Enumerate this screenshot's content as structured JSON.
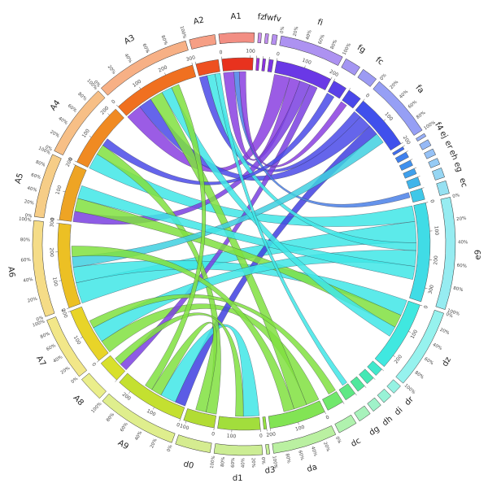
{
  "chart_data": {
    "type": "chord",
    "segments": [
      {
        "name": "A1",
        "size": 110,
        "color": "#e8321e"
      },
      {
        "name": "fz",
        "size": 10,
        "color": "#9b30d8"
      },
      {
        "name": "fw",
        "size": 10,
        "color": "#8a30e0"
      },
      {
        "name": "fv",
        "size": 15,
        "color": "#7a34e4"
      },
      {
        "name": "fi",
        "size": 200,
        "color": "#6a38e6"
      },
      {
        "name": "fg",
        "size": 50,
        "color": "#5a40e8"
      },
      {
        "name": "fc",
        "size": 50,
        "color": "#4a48ea"
      },
      {
        "name": "fa",
        "size": 200,
        "color": "#4050ec"
      },
      {
        "name": "f4",
        "size": 10,
        "color": "#3f6cee"
      },
      {
        "name": "ej",
        "size": 20,
        "color": "#3f80ee"
      },
      {
        "name": "er",
        "size": 20,
        "color": "#3f90ee"
      },
      {
        "name": "eh",
        "size": 20,
        "color": "#3fa0ec"
      },
      {
        "name": "eg",
        "size": 30,
        "color": "#3fb4ea"
      },
      {
        "name": "ec",
        "size": 40,
        "color": "#3fc8e8"
      },
      {
        "name": "e9",
        "size": 350,
        "color": "#40dce6"
      },
      {
        "name": "dz",
        "size": 250,
        "color": "#40e8e0"
      },
      {
        "name": "dr",
        "size": 30,
        "color": "#40e8cc"
      },
      {
        "name": "di",
        "size": 30,
        "color": "#44e8b4"
      },
      {
        "name": "dh",
        "size": 30,
        "color": "#50e89c"
      },
      {
        "name": "dg",
        "size": 40,
        "color": "#5ee884"
      },
      {
        "name": "dc",
        "size": 60,
        "color": "#70e86c"
      },
      {
        "name": "da",
        "size": 200,
        "color": "#82e454"
      },
      {
        "name": "d3",
        "size": 10,
        "color": "#94e040"
      },
      {
        "name": "d1",
        "size": 150,
        "color": "#a2de3c"
      },
      {
        "name": "d0",
        "size": 110,
        "color": "#b2dc34"
      },
      {
        "name": "A9",
        "size": 250,
        "color": "#c4e030"
      },
      {
        "name": "A8",
        "size": 80,
        "color": "#d8e02c"
      },
      {
        "name": "A7",
        "size": 200,
        "color": "#e8d428"
      },
      {
        "name": "A6",
        "size": 300,
        "color": "#ecc024"
      },
      {
        "name": "A5",
        "size": 200,
        "color": "#eea424"
      },
      {
        "name": "A4",
        "size": 230,
        "color": "#f08a22"
      },
      {
        "name": "A3",
        "size": 300,
        "color": "#f07020"
      },
      {
        "name": "A2",
        "size": 80,
        "color": "#ee5020"
      }
    ],
    "chords": [
      {
        "from": "A3",
        "to": "fi",
        "value": 60,
        "color": "#8a3fe0"
      },
      {
        "from": "A1",
        "to": "fi",
        "value": 40,
        "color": "#8a3fe0"
      },
      {
        "from": "A2",
        "to": "fa",
        "value": 30,
        "color": "#4a4ae8"
      },
      {
        "from": "A3",
        "to": "fa",
        "value": 50,
        "color": "#4a4ae8"
      },
      {
        "from": "A4",
        "to": "e9",
        "value": 60,
        "color": "#40e6e6"
      },
      {
        "from": "A5",
        "to": "fi",
        "value": 40,
        "color": "#7a3fe0"
      },
      {
        "from": "A6",
        "to": "e9",
        "value": 80,
        "color": "#40e6e6"
      },
      {
        "from": "A6",
        "to": "dz",
        "value": 60,
        "color": "#40e6e6"
      },
      {
        "from": "A7",
        "to": "da",
        "value": 50,
        "color": "#80e040"
      },
      {
        "from": "A9",
        "to": "fa",
        "value": 40,
        "color": "#4040e0"
      },
      {
        "from": "A9",
        "to": "d1",
        "value": 60,
        "color": "#40e6e6"
      },
      {
        "from": "A8",
        "to": "fi",
        "value": 30,
        "color": "#7a3fe0"
      },
      {
        "from": "A4",
        "to": "d0",
        "value": 40,
        "color": "#80e040"
      },
      {
        "from": "A3",
        "to": "da",
        "value": 50,
        "color": "#80e040"
      },
      {
        "from": "A2",
        "to": "e9",
        "value": 30,
        "color": "#40e6e6"
      },
      {
        "from": "A5",
        "to": "dz",
        "value": 50,
        "color": "#80e040"
      },
      {
        "from": "A7",
        "to": "e9",
        "value": 60,
        "color": "#40e6e6"
      },
      {
        "from": "A1",
        "to": "ec",
        "value": 20,
        "color": "#4a80e8"
      },
      {
        "from": "A6",
        "to": "fa",
        "value": 40,
        "color": "#40d0e0"
      },
      {
        "from": "A9",
        "to": "d0",
        "value": 40,
        "color": "#80e040"
      },
      {
        "from": "A7",
        "to": "dc",
        "value": 30,
        "color": "#80e040"
      },
      {
        "from": "A4",
        "to": "fg",
        "value": 30,
        "color": "#4a4ae8"
      },
      {
        "from": "A5",
        "to": "e9",
        "value": 50,
        "color": "#40e6e6"
      },
      {
        "from": "A3",
        "to": "dz",
        "value": 40,
        "color": "#40e6e6"
      },
      {
        "from": "A8",
        "to": "d1",
        "value": 30,
        "color": "#80e040"
      },
      {
        "from": "A6",
        "to": "da",
        "value": 40,
        "color": "#80e040"
      },
      {
        "from": "A9",
        "to": "A3",
        "value": 30,
        "color": "#80e040"
      },
      {
        "from": "A1",
        "to": "fc",
        "value": 25,
        "color": "#8a3fe0"
      },
      {
        "from": "A2",
        "to": "dg",
        "value": 20,
        "color": "#40e6e6"
      }
    ],
    "ticks": [
      0,
      100,
      200,
      300
    ],
    "percent_ticks": [
      {
        "value": 0,
        "label": "0%"
      },
      {
        "value": 20,
        "label": "20%"
      },
      {
        "value": 40,
        "label": "40%"
      },
      {
        "value": 60,
        "label": "60%"
      },
      {
        "value": 80,
        "label": "80%"
      },
      {
        "value": 100,
        "label": "100%"
      }
    ]
  }
}
